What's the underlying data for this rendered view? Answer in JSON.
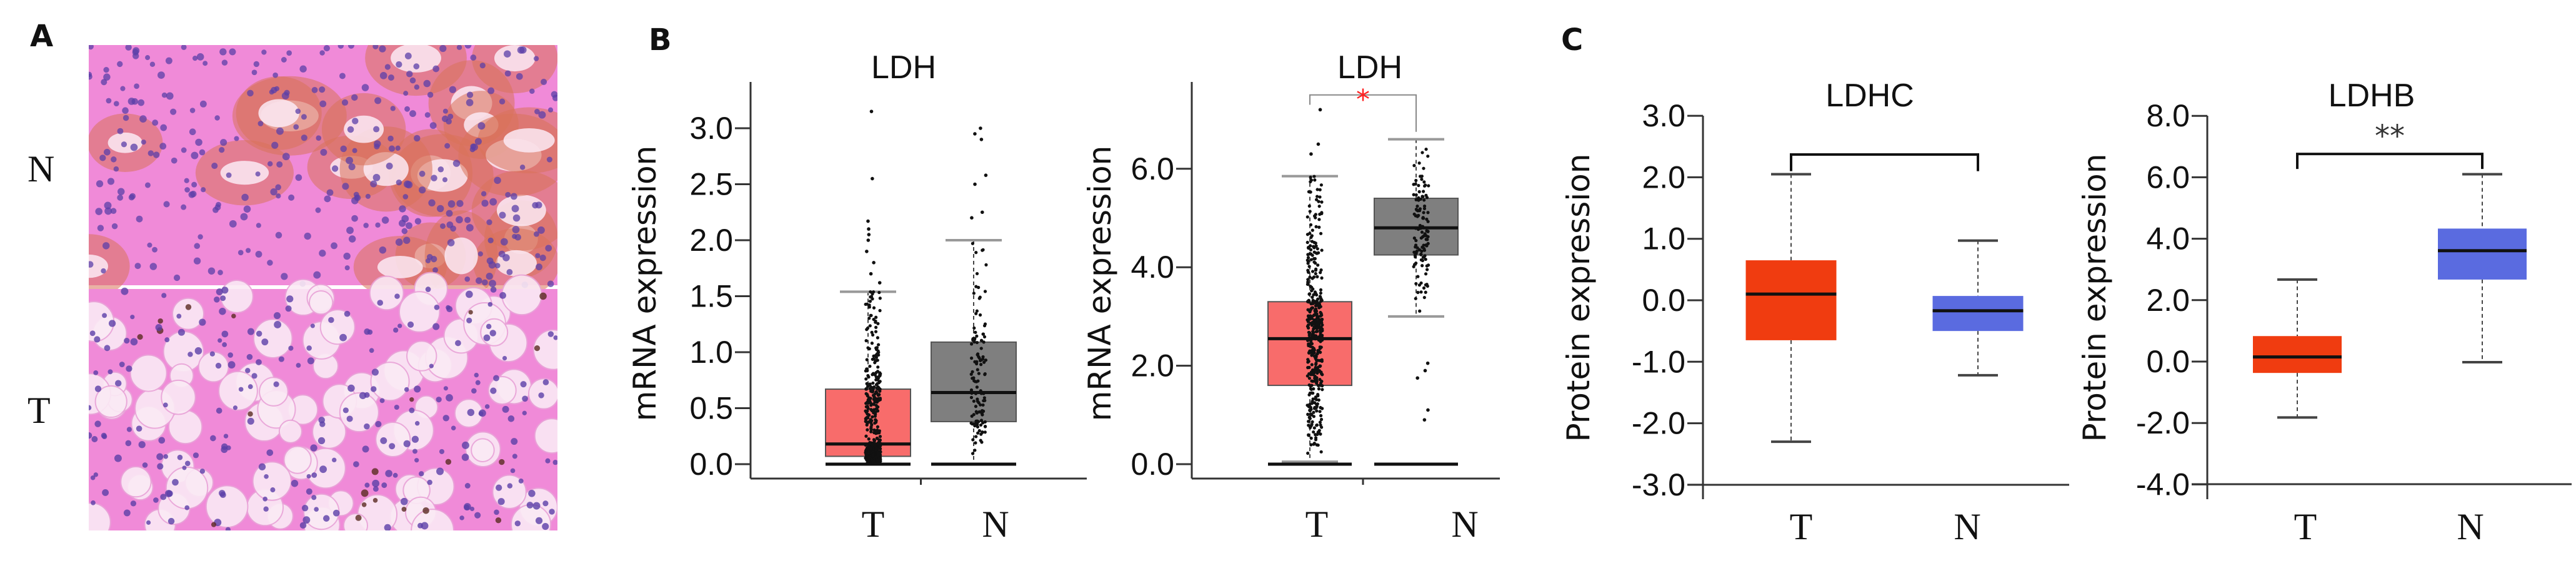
{
  "panel_labels": {
    "a": "A",
    "b": "B",
    "c": "C"
  },
  "panel_a": {
    "row_labels": [
      "N",
      "T"
    ],
    "stain_colors": {
      "background": "#F08AD8",
      "nuclei": "#5B3FA8",
      "lumen": "#FBEAF5",
      "cast": "#D9735A"
    }
  },
  "chart_data": [
    {
      "type": "box",
      "panel": "B",
      "title": "LDH",
      "ylabel": "mRNA expression",
      "categories": [
        "T",
        "N"
      ],
      "ylim": [
        0,
        3.3
      ],
      "yticks": [
        "0.0",
        "0.5",
        "1.0",
        "1.5",
        "2.0",
        "2.5",
        "3.0"
      ],
      "show_points": true,
      "zero_line": true,
      "series": [
        {
          "category": "T",
          "color": "#F86C6B",
          "whisker_low": 0.0,
          "q1": 0.07,
          "median": 0.18,
          "q3": 0.67,
          "whisker_high": 1.54,
          "outliers": [
            2.17,
            2.1,
            2.05,
            2.0,
            1.9,
            1.8,
            1.7,
            1.62,
            2.55,
            3.15
          ]
        },
        {
          "category": "N",
          "color": "#7F7F7F",
          "whisker_low": 0.0,
          "q1": 0.38,
          "median": 0.64,
          "q3": 1.09,
          "whisker_high": 2.0,
          "outliers": [
            2.2,
            2.25,
            2.5,
            2.58,
            2.9,
            2.95,
            3.0
          ]
        }
      ],
      "significance": null
    },
    {
      "type": "box",
      "panel": "B",
      "title": "LDH",
      "ylabel": "mRNA expression",
      "categories": [
        "T",
        "N"
      ],
      "ylim": [
        0,
        7.6
      ],
      "yticks": [
        "0.0",
        "2.0",
        "4.0",
        "6.0"
      ],
      "show_points": true,
      "zero_line": true,
      "series": [
        {
          "category": "T",
          "color": "#F86C6B",
          "whisker_low": 0.05,
          "q1": 1.6,
          "median": 2.55,
          "q3": 3.3,
          "whisker_high": 5.85,
          "outliers": [
            6.3,
            6.5,
            7.2
          ]
        },
        {
          "category": "N",
          "color": "#7F7F7F",
          "whisker_low": 3.0,
          "q1": 4.25,
          "median": 4.8,
          "q3": 5.4,
          "whisker_high": 6.6,
          "outliers": [
            2.05,
            1.9,
            1.75,
            1.1,
            0.9
          ]
        }
      ],
      "significance": {
        "label": "*",
        "color": "#FF2020",
        "level": 7.5,
        "left_end": 7.3,
        "right_end": 6.75
      }
    },
    {
      "type": "box",
      "panel": "C",
      "title": "LDHC",
      "ylabel": "Protein expression",
      "categories": [
        "T",
        "N"
      ],
      "ylim": [
        -3,
        3
      ],
      "yticks": [
        "-3.0",
        "-2.0",
        "-1.0",
        "0.0",
        "1.0",
        "2.0",
        "3.0"
      ],
      "show_points": false,
      "zero_line": false,
      "series": [
        {
          "category": "T",
          "color": "#F03C10",
          "whisker_low": -2.3,
          "q1": -0.65,
          "median": 0.1,
          "q3": 0.65,
          "whisker_high": 2.05
        },
        {
          "category": "N",
          "color": "#5A6BE0",
          "whisker_low": -1.22,
          "q1": -0.5,
          "median": -0.17,
          "q3": 0.07,
          "whisker_high": 0.97
        }
      ],
      "significance": {
        "label": "",
        "color": "#000000",
        "level": 2.37,
        "left_end": 2.1,
        "right_end": 2.1
      }
    },
    {
      "type": "box",
      "panel": "C",
      "title": "LDHB",
      "ylabel": "Protein expression",
      "categories": [
        "T",
        "N"
      ],
      "ylim": [
        -4,
        8
      ],
      "yticks": [
        "-4.0",
        "-2.0",
        "0.0",
        "2.0",
        "4.0",
        "6.0",
        "8.0"
      ],
      "show_points": false,
      "zero_line": false,
      "series": [
        {
          "category": "T",
          "color": "#F03C10",
          "whisker_low": -1.82,
          "q1": -0.37,
          "median": 0.15,
          "q3": 0.83,
          "whisker_high": 2.67
        },
        {
          "category": "N",
          "color": "#5A6BE0",
          "whisker_low": -0.02,
          "q1": 2.67,
          "median": 3.61,
          "q3": 4.33,
          "whisker_high": 6.1
        }
      ],
      "significance": {
        "label": "**",
        "color": "#333333",
        "level": 6.76,
        "left_end": 6.27,
        "right_end": 6.27
      }
    }
  ]
}
